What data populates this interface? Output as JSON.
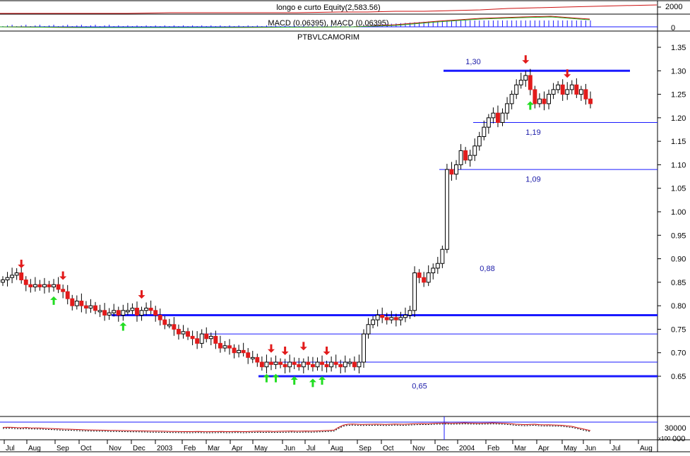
{
  "panels": {
    "equity_label": "longo e curto Equity(2,583.56)",
    "macd_label": "MACD (0.06395), MACD (0.06395)",
    "price_label": "PTBVLCAMORIM",
    "equity_ticks": [
      "2000",
      "0"
    ],
    "bottom_ticks": [
      "30000",
      "x100",
      "000"
    ]
  },
  "chart_data": {
    "type": "candlestick",
    "title": "PTBVLCAMORIM",
    "ylim": [
      0.62,
      1.36
    ],
    "y_ticks": [
      "1.35",
      "1.30",
      "1.25",
      "1.20",
      "1.15",
      "1.10",
      "1.05",
      "1.00",
      "0.95",
      "0.90",
      "0.85",
      "0.80",
      "0.75",
      "0.70",
      "0.65"
    ],
    "x_ticks": [
      "Jul",
      "Aug",
      "Sep",
      "Oct",
      "Nov",
      "Dec",
      "2003",
      "Feb",
      "Mar",
      "Apr",
      "May",
      "Jun",
      "Jul",
      "Aug",
      "Sep",
      "Oct",
      "Nov",
      "Dec",
      "2004",
      "Feb",
      "Mar",
      "Apr",
      "May",
      "Jun",
      "Jul",
      "Aug"
    ],
    "level_labels": [
      "1,30",
      "1,19",
      "1,09",
      "0,88",
      "0,65"
    ],
    "colors": {
      "up": "#ffffff",
      "down": "#e21b1b",
      "outline": "#000000",
      "level": "#1a1aff",
      "up_arrow": "#22dd22",
      "down_arrow": "#e21b1b"
    },
    "horizontal_lines": [
      {
        "y": 1.3,
        "style": "thick"
      },
      {
        "y": 1.19,
        "style": "thin"
      },
      {
        "y": 1.09,
        "style": "thin"
      },
      {
        "y": 0.78,
        "style": "thick"
      },
      {
        "y": 0.74,
        "style": "thin"
      },
      {
        "y": 0.68,
        "style": "thin"
      },
      {
        "y": 0.65,
        "style": "thick"
      }
    ],
    "closes": [
      0.855,
      0.86,
      0.865,
      0.87,
      0.855,
      0.845,
      0.84,
      0.845,
      0.84,
      0.845,
      0.84,
      0.845,
      0.835,
      0.83,
      0.815,
      0.8,
      0.81,
      0.8,
      0.795,
      0.8,
      0.79,
      0.79,
      0.78,
      0.785,
      0.79,
      0.78,
      0.79,
      0.79,
      0.795,
      0.78,
      0.79,
      0.795,
      0.79,
      0.78,
      0.77,
      0.76,
      0.76,
      0.75,
      0.74,
      0.745,
      0.735,
      0.73,
      0.72,
      0.74,
      0.73,
      0.735,
      0.72,
      0.71,
      0.715,
      0.71,
      0.7,
      0.705,
      0.7,
      0.69,
      0.69,
      0.68,
      0.67,
      0.68,
      0.675,
      0.68,
      0.675,
      0.67,
      0.68,
      0.675,
      0.67,
      0.68,
      0.675,
      0.67,
      0.68,
      0.675,
      0.67,
      0.68,
      0.675,
      0.67,
      0.68,
      0.68,
      0.67,
      0.68,
      0.74,
      0.76,
      0.77,
      0.78,
      0.775,
      0.77,
      0.775,
      0.77,
      0.775,
      0.78,
      0.79,
      0.87,
      0.86,
      0.85,
      0.87,
      0.88,
      0.89,
      0.92,
      1.09,
      1.08,
      1.1,
      1.13,
      1.11,
      1.12,
      1.14,
      1.16,
      1.18,
      1.2,
      1.21,
      1.19,
      1.21,
      1.23,
      1.25,
      1.27,
      1.28,
      1.29,
      1.26,
      1.23,
      1.24,
      1.23,
      1.25,
      1.26,
      1.27,
      1.25,
      1.26,
      1.27,
      1.25,
      1.26,
      1.24,
      1.23
    ],
    "signals": {
      "down": [
        4,
        13,
        30,
        58,
        61,
        65,
        70,
        113,
        122
      ],
      "up": [
        11,
        26,
        57,
        59,
        63,
        67,
        69,
        114
      ]
    },
    "lower_indicator": [
      0.5,
      0.52,
      0.51,
      0.48,
      0.47,
      0.49,
      0.46,
      0.45,
      0.44,
      0.42,
      0.4,
      0.38,
      0.36,
      0.34,
      0.33,
      0.32,
      0.3,
      0.28,
      0.27,
      0.26,
      0.25,
      0.24,
      0.23,
      0.22,
      0.22,
      0.21,
      0.2,
      0.19,
      0.18,
      0.18,
      0.17,
      0.16,
      0.15,
      0.15,
      0.14,
      0.13,
      0.12,
      0.12,
      0.11,
      0.1,
      0.1,
      0.11,
      0.12,
      0.1,
      0.09,
      0.1,
      0.11,
      0.12,
      0.1,
      0.11,
      0.12,
      0.11,
      0.1,
      0.12,
      0.13,
      0.14,
      0.13,
      0.14,
      0.12,
      0.13,
      0.14,
      0.15,
      0.16,
      0.14,
      0.15,
      0.16,
      0.15,
      0.16,
      0.18,
      0.2,
      0.22,
      0.25,
      0.5,
      0.72,
      0.8,
      0.82,
      0.8,
      0.78,
      0.79,
      0.8,
      0.81,
      0.8,
      0.78,
      0.8,
      0.82,
      0.81,
      0.8,
      0.82,
      0.84,
      0.86,
      0.87,
      0.86,
      0.88,
      0.9,
      0.91,
      0.92,
      0.9,
      0.91,
      0.92,
      0.93,
      0.92,
      0.91,
      0.9,
      0.91,
      0.92,
      0.93,
      0.92,
      0.9,
      0.88,
      0.85,
      0.8,
      0.78,
      0.76,
      0.78,
      0.8,
      0.76,
      0.74,
      0.75,
      0.73,
      0.72,
      0.7,
      0.65,
      0.6,
      0.5,
      0.4,
      0.3,
      0.2
    ]
  }
}
